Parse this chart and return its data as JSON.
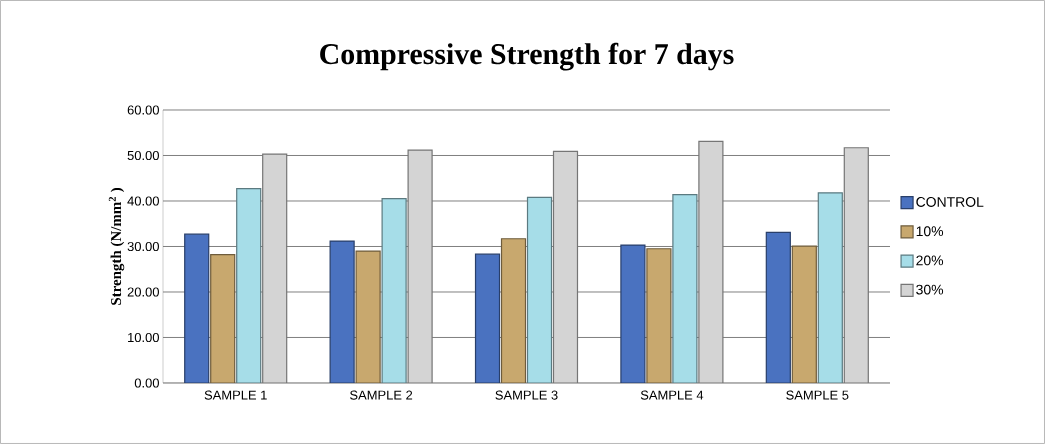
{
  "chart_data": {
    "type": "bar",
    "title": "Compressive Strength for 7 days",
    "ylabel": "Strength (N/mm$^{2}$ )",
    "categories": [
      "SAMPLE 1",
      "SAMPLE 2",
      "SAMPLE 3",
      "SAMPLE 4",
      "SAMPLE 5"
    ],
    "series": [
      {
        "name": "CONTROL",
        "color": "#4a72c0",
        "values": [
          32.7,
          31.2,
          28.3,
          30.3,
          33.1
        ]
      },
      {
        "name": "10%",
        "color": "#c8a86e",
        "values": [
          28.2,
          29.0,
          31.7,
          29.5,
          30.1
        ]
      },
      {
        "name": "20%",
        "color": "#a6dde8",
        "values": [
          42.7,
          40.5,
          40.8,
          41.4,
          41.8
        ]
      },
      {
        "name": "30%",
        "color": "#d4d4d4",
        "values": [
          50.3,
          51.2,
          50.9,
          53.1,
          51.7
        ]
      }
    ],
    "ylim": [
      0,
      60
    ],
    "yticks": [
      {
        "value": 0,
        "label": "0.00"
      },
      {
        "value": 10,
        "label": "10.00"
      },
      {
        "value": 20,
        "label": "20.00"
      },
      {
        "value": 30,
        "label": "30.00"
      },
      {
        "value": 40,
        "label": "40.00"
      },
      {
        "value": 50,
        "label": "50.00"
      },
      {
        "value": 60,
        "label": "60.00"
      }
    ],
    "grid": "y",
    "legend": "right"
  }
}
